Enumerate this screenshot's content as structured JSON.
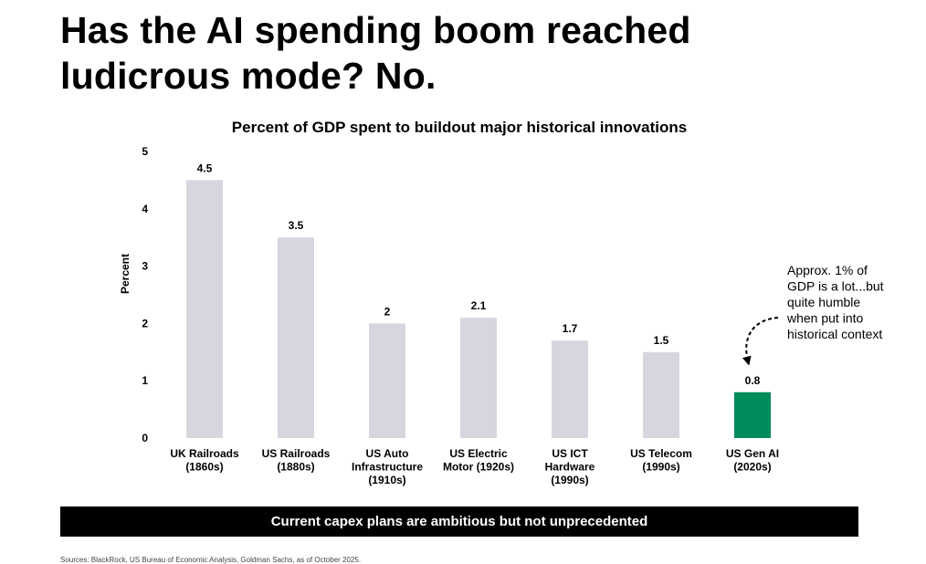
{
  "headline": {
    "line1": "Has the AI spending boom reached",
    "line2": "ludicrous mode? No."
  },
  "chart_data": {
    "type": "bar",
    "title": "Percent of GDP spent to buildout major historical innovations",
    "ylabel": "Percent",
    "xlabel": "",
    "ylim": [
      0,
      5
    ],
    "yticks": [
      0,
      1,
      2,
      3,
      4,
      5
    ],
    "grid": false,
    "categories": [
      [
        "UK Railroads",
        "(1860s)"
      ],
      [
        "US Railroads",
        "(1880s)"
      ],
      [
        "US Auto",
        "Infrastructure",
        "(1910s)"
      ],
      [
        "US Electric",
        "Motor (1920s)"
      ],
      [
        "US ICT",
        "Hardware",
        "(1990s)"
      ],
      [
        "US Telecom",
        "(1990s)"
      ],
      [
        "US Gen AI",
        "(2020s)"
      ]
    ],
    "values": [
      4.5,
      3.5,
      2,
      2.1,
      1.7,
      1.5,
      0.8
    ],
    "data_labels": [
      "4.5",
      "3.5",
      "2",
      "2.1",
      "1.7",
      "1.5",
      "0.8"
    ],
    "colors": {
      "default": "#d7d6df",
      "highlight": "#008c5a",
      "highlight_index": 6
    },
    "annotation": {
      "text": [
        "Approx. 1% of",
        "GDP is a lot...but",
        "quite humble",
        "when put into",
        "historical context"
      ],
      "target_index": 6
    }
  },
  "banner": {
    "text": "Current capex plans are ambitious but not unprecedented"
  },
  "footnote": {
    "text": "Sources: BlackRock, US Bureau of Economic Analysis, Goldman Sachs, as of October 2025."
  }
}
